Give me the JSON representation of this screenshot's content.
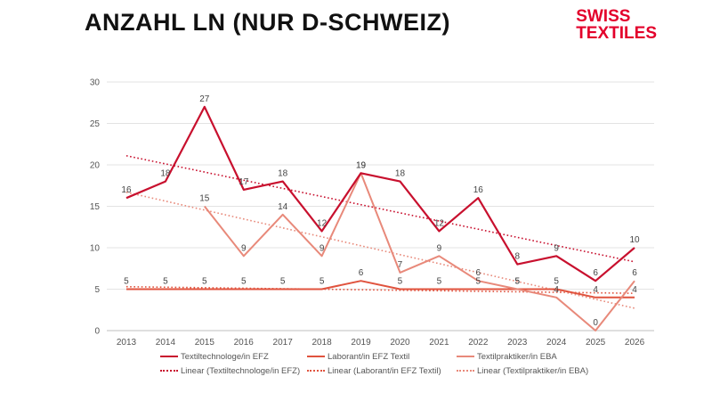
{
  "title": "ANZAHL LN (NUR D-SCHWEIZ)",
  "logo": {
    "line1": "SWISS",
    "line2": "TEXTILES"
  },
  "colors": {
    "brand": "#e3002b",
    "s1": "#c8102e",
    "s2": "#e0533e",
    "s3": "#e8897a"
  },
  "chart_data": {
    "type": "line",
    "x": [
      2013,
      2014,
      2015,
      2016,
      2017,
      2018,
      2019,
      2020,
      2021,
      2022,
      2023,
      2024,
      2025,
      2026
    ],
    "ylim": [
      0,
      30
    ],
    "yticks": [
      0,
      5,
      10,
      15,
      20,
      25,
      30
    ],
    "grid": true,
    "legend_position": "bottom",
    "series": [
      {
        "name": "Textiltechnologe/in EFZ",
        "color": "#c8102e",
        "values": [
          16,
          18,
          27,
          17,
          18,
          12,
          19,
          18,
          12,
          16,
          8,
          9,
          6,
          10
        ],
        "labels": [
          "16",
          "18",
          "27",
          "17",
          "18",
          "12",
          "19",
          "18",
          "12",
          "16",
          "8",
          "9",
          "6",
          "10"
        ]
      },
      {
        "name": "Laborant/in EFZ Textil",
        "color": "#e0533e",
        "values": [
          5,
          5,
          5,
          5,
          5,
          5,
          6,
          5,
          5,
          5,
          5,
          5,
          4,
          4
        ],
        "labels": [
          "5",
          "5",
          "5",
          "5",
          "5",
          "5",
          "6",
          "5",
          "5",
          "5",
          "5",
          "5",
          "4",
          "4"
        ]
      },
      {
        "name": "Textilpraktiker/in EBA",
        "color": "#e8897a",
        "values": [
          null,
          null,
          15,
          9,
          14,
          9,
          19,
          7,
          9,
          6,
          5,
          4,
          0,
          6
        ],
        "labels": [
          null,
          null,
          "15",
          "9",
          "14",
          "9",
          "19",
          "7",
          "9",
          "6",
          "5",
          "4",
          "0",
          "6"
        ]
      }
    ],
    "trendlines": [
      {
        "name": "Linear (Textiltechnologe/in EFZ)",
        "color": "#c8102e",
        "values": [
          21.1,
          8.3
        ]
      },
      {
        "name": "Linear (Laborant/in EFZ Textil)",
        "color": "#e0533e",
        "values": [
          5.3,
          4.5
        ]
      },
      {
        "name": "Linear (Textilpraktiker/in EBA)",
        "color": "#e8897a",
        "values": [
          16.7,
          2.7
        ]
      }
    ]
  }
}
